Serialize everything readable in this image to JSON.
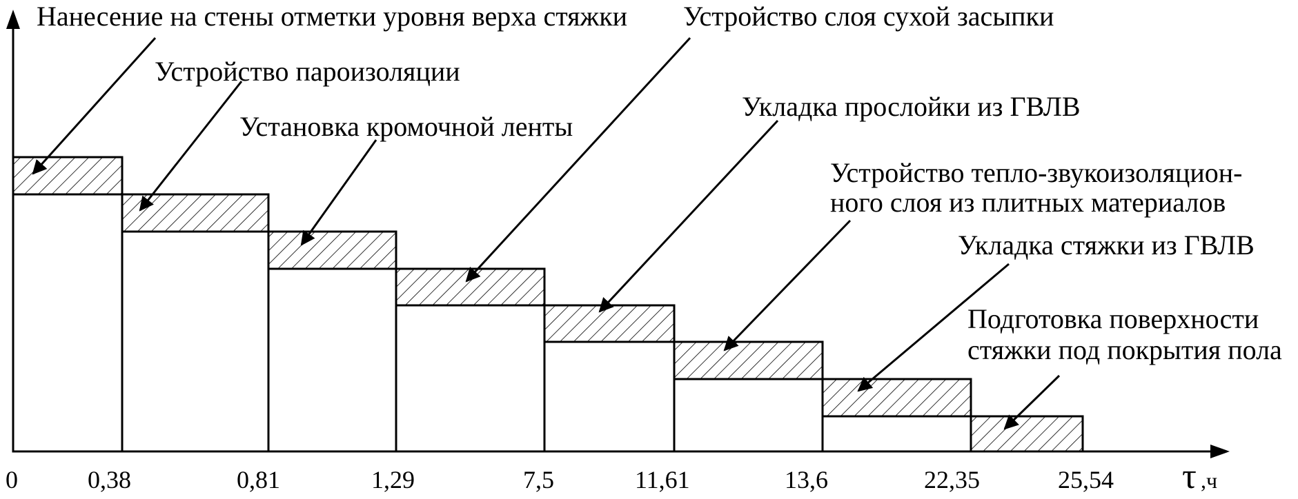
{
  "diagram": {
    "axis": {
      "time_symbol": "τ",
      "time_unit": ",ч"
    },
    "tick_labels": [
      "0",
      "0,38",
      "0,81",
      "1,29",
      "7,5",
      "11,61",
      "13,6",
      "22,35",
      "25,54"
    ],
    "operations": [
      {
        "id": "op1",
        "lines": [
          "Нанесение на стены отметки уровня верха стяжки"
        ]
      },
      {
        "id": "op2",
        "lines": [
          "Устройство пароизоляции"
        ]
      },
      {
        "id": "op3",
        "lines": [
          "Установка кромочной ленты"
        ]
      },
      {
        "id": "op4",
        "lines": [
          "Устройство слоя сухой засыпки"
        ]
      },
      {
        "id": "op5",
        "lines": [
          "Укладка прослойки из ГВЛВ"
        ]
      },
      {
        "id": "op6",
        "lines": [
          "Устройство тепло-звукоизоляцион-",
          "ного слоя из плитных материалов"
        ]
      },
      {
        "id": "op7",
        "lines": [
          "Укладка стяжки из ГВЛВ"
        ]
      },
      {
        "id": "op8",
        "lines": [
          "Подготовка поверхности",
          "стяжки под покрытия пола"
        ]
      }
    ]
  }
}
